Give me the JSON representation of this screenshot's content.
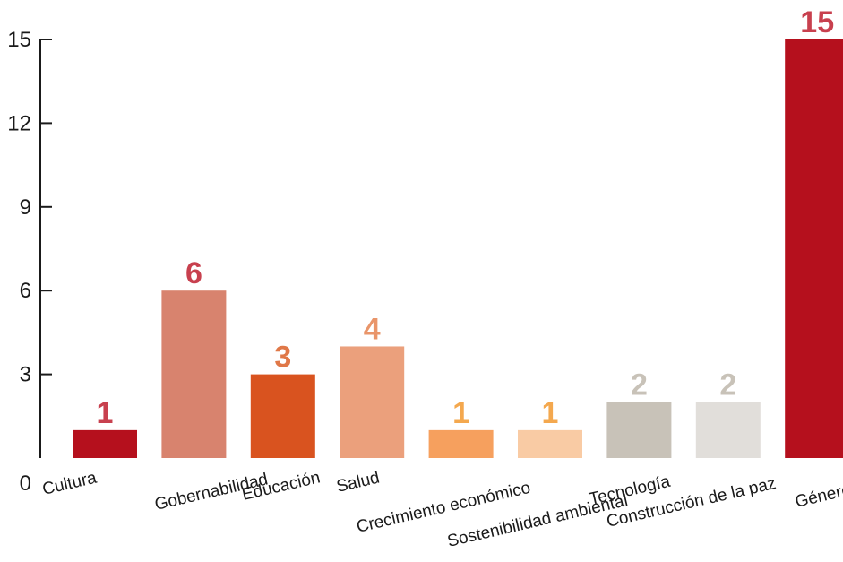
{
  "chart_data": {
    "type": "bar",
    "title": "",
    "xlabel": "",
    "ylabel": "",
    "ylim": [
      0,
      15
    ],
    "yticks": [
      0,
      3,
      6,
      9,
      12,
      15
    ],
    "grid": false,
    "categories": [
      "Cultura",
      "Gobernabilidad",
      "Educación",
      "Salud",
      "Crecimiento económico",
      "Sostenibilidad ambiental",
      "Tecnología",
      "Construcción de la paz",
      "Género"
    ],
    "values": [
      1,
      6,
      3,
      4,
      1,
      1,
      2,
      2,
      15
    ],
    "bar_colors": [
      "#b5101d",
      "#d8836e",
      "#d9531f",
      "#eba07c",
      "#f6a05e",
      "#f9cba4",
      "#c8c2b8",
      "#e1deda",
      "#b5101d"
    ],
    "label_colors": [
      "#c8404e",
      "#c8404e",
      "#e07848",
      "#e9956a",
      "#f4a84e",
      "#f4a84e",
      "#c8c2b8",
      "#c8c2b8",
      "#c8404e"
    ]
  }
}
